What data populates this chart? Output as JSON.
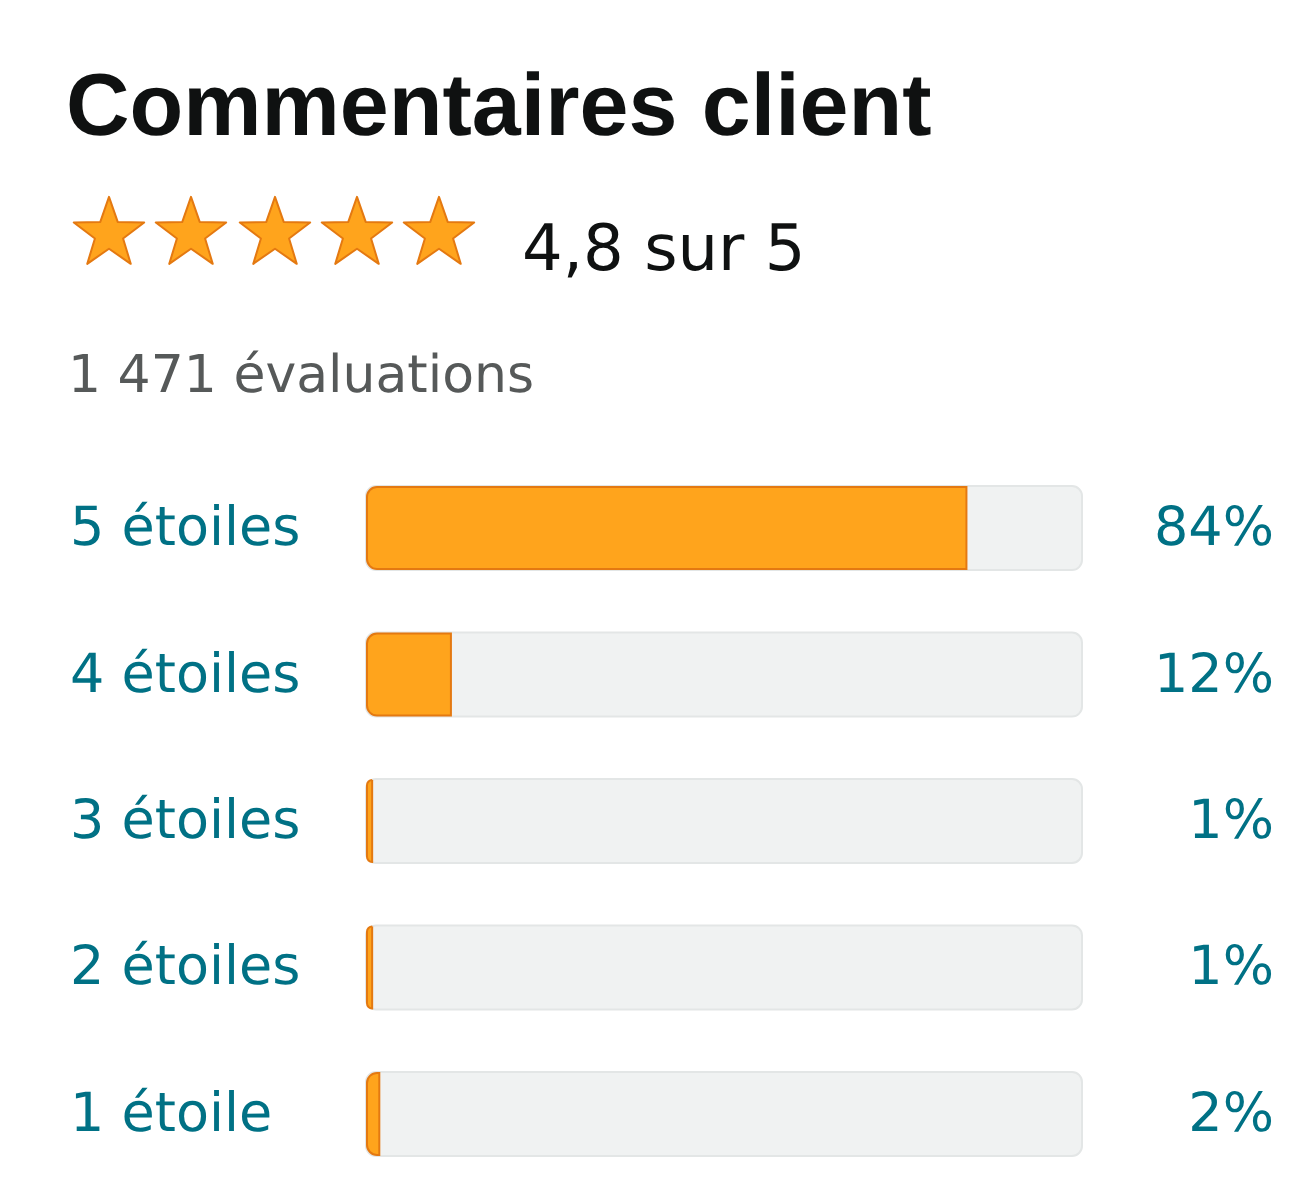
{
  "chart_data": {
    "type": "bar",
    "orientation": "horizontal",
    "title": "Commentaires client",
    "subtitle": "4,8 sur 5",
    "annotations": [
      "1 471 évaluations"
    ],
    "categories": [
      "5 étoiles",
      "4 étoiles",
      "3 étoiles",
      "2 étoiles",
      "1 étoile"
    ],
    "values": [
      84,
      12,
      1,
      1,
      2
    ],
    "value_labels": [
      "84%",
      "12%",
      "1%",
      "1%",
      "2%"
    ],
    "color": "#ffa41c",
    "xlim": [
      0,
      100
    ],
    "tick_labels": "y"
  }
}
